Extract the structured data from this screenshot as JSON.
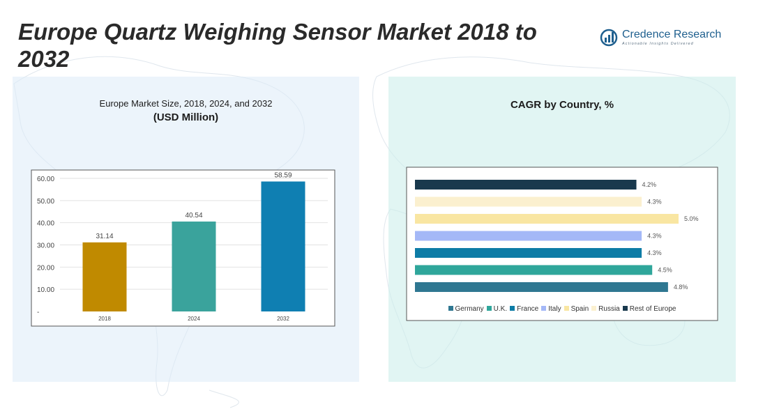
{
  "title": "Europe Quartz Weighing Sensor Market 2018 to 2032",
  "brand": {
    "name": "Credence Research",
    "tagline": "Actionable Insights Delivered"
  },
  "colors": {
    "bar_2018": "#c08a00",
    "bar_2024": "#3aa39c",
    "bar_2032": "#0f7fb2",
    "germany": "#2f7791",
    "uk": "#2fa69b",
    "france": "#0d7ca6",
    "italy": "#a4b8f7",
    "spain": "#f9e6a2",
    "russia": "#fbf0cf",
    "rest_of_europe": "#19394d"
  },
  "chart_data": [
    {
      "type": "bar",
      "title": "Europe Market Size, 2018, 2024, and 2032",
      "subtitle": "(USD Million)",
      "categories": [
        "2018",
        "2024",
        "2032"
      ],
      "values": [
        31.14,
        40.54,
        58.59
      ],
      "data_labels": [
        "31.14",
        "40.54",
        "58.59"
      ],
      "ylim": [
        0,
        60
      ],
      "yticks": [
        0,
        10,
        20,
        30,
        40,
        50,
        60
      ],
      "ytick_labels": [
        "-",
        "10.00",
        "20.00",
        "30.00",
        "40.00",
        "50.00",
        "60.00"
      ],
      "xlabel": "",
      "ylabel": "",
      "grid": true
    },
    {
      "type": "bar",
      "orientation": "horizontal",
      "title": "CAGR by Country, %",
      "series": [
        {
          "name": "Rest of Europe",
          "value": 4.2,
          "label": "4.2%"
        },
        {
          "name": "Russia",
          "value": 4.3,
          "label": "4.3%"
        },
        {
          "name": "Spain",
          "value": 5.0,
          "label": "5.0%"
        },
        {
          "name": "Italy",
          "value": 4.3,
          "label": "4.3%"
        },
        {
          "name": "France",
          "value": 4.3,
          "label": "4.3%"
        },
        {
          "name": "U.K.",
          "value": 4.5,
          "label": "4.5%"
        },
        {
          "name": "Germany",
          "value": 4.8,
          "label": "4.8%"
        }
      ],
      "legend": [
        "Germany",
        "U.K.",
        "France",
        "Italy",
        "Spain",
        "Russia",
        "Rest of Europe"
      ],
      "legend_position": "bottom",
      "xlim": [
        0,
        5.0
      ]
    }
  ]
}
